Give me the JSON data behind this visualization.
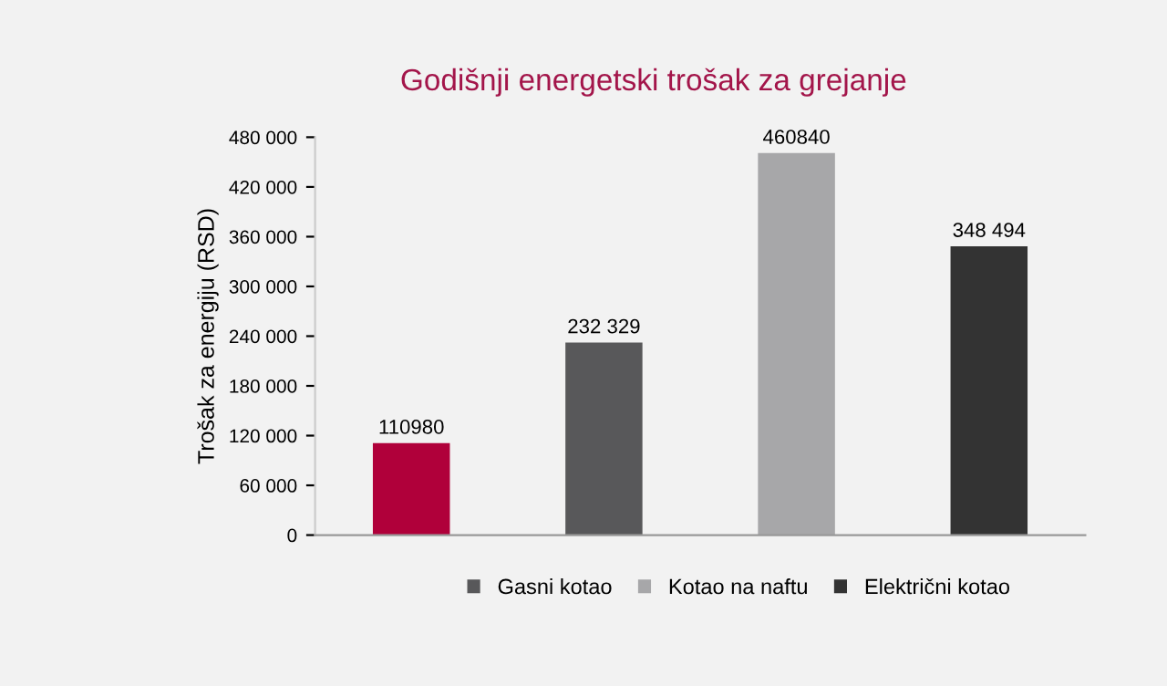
{
  "chart_data": {
    "type": "bar",
    "title": "Godišnji energetski trošak za grejanje",
    "ylabel": "Trošak za energiju (RSD)",
    "categories": [
      null,
      null,
      null,
      null
    ],
    "series": [
      {
        "color": "#b0003a",
        "values": [
          110980,
          null,
          null,
          null
        ],
        "value_labels": [
          "110980",
          null,
          null,
          null
        ]
      },
      {
        "name": "Gasni kotao",
        "color": "#58585a",
        "values": [
          null,
          232329,
          null,
          null
        ],
        "value_labels": [
          null,
          "232 329",
          null,
          null
        ]
      },
      {
        "name": "Kotao na naftu",
        "color": "#a7a7a9",
        "values": [
          null,
          null,
          460840,
          null
        ],
        "value_labels": [
          null,
          null,
          "460840",
          null
        ]
      },
      {
        "name": "Električni kotao",
        "color": "#333333",
        "values": [
          null,
          null,
          null,
          348494
        ],
        "value_labels": [
          null,
          null,
          null,
          "348 494"
        ]
      }
    ],
    "ylim": [
      0,
      480000
    ],
    "yticks": [
      0,
      {
        "value": 60000,
        "label": "60 000"
      },
      {
        "value": 120000,
        "label": "120 000"
      },
      {
        "value": 180000,
        "label": "180 000"
      },
      {
        "value": 240000,
        "label": "240 000"
      },
      {
        "value": 300000,
        "label": "300 000"
      },
      {
        "value": 360000,
        "label": "360 000"
      },
      {
        "value": 420000,
        "label": "420 000"
      },
      {
        "value": 480000,
        "label": "480 000"
      }
    ],
    "grid": false,
    "legend": "bottom"
  }
}
